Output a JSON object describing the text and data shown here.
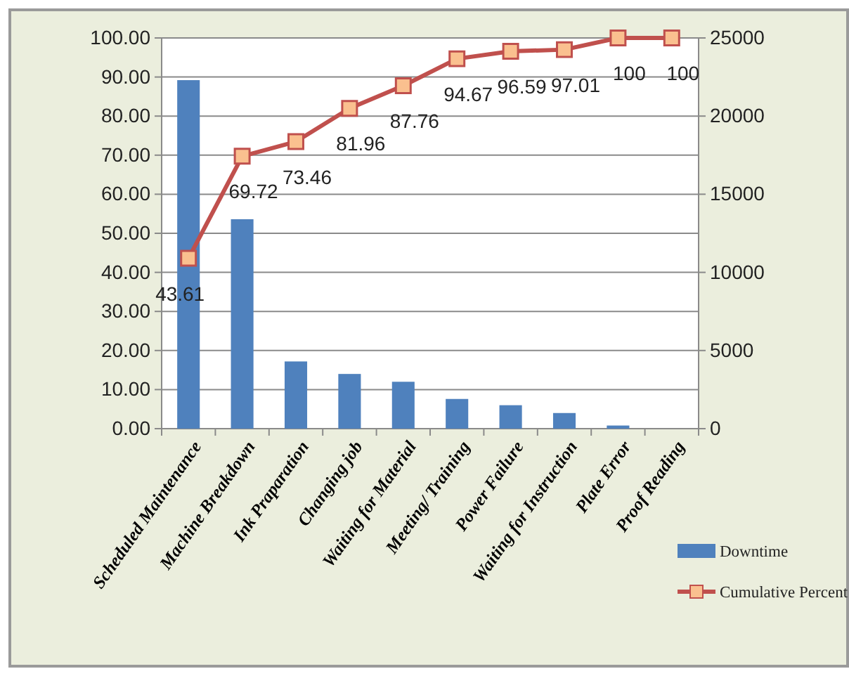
{
  "chart_data": {
    "type": "bar",
    "categories": [
      "Scheduled Maintenance",
      "Machine Breakdown",
      "Ink Praparation",
      "Changing job",
      "Waiting for Material",
      "Meeting/ Training",
      "Power Failure",
      "Waiting for Instruction",
      "Plate Error",
      "Proof Reading"
    ],
    "series": [
      {
        "name": "Downtime",
        "axis": "y2",
        "color": "#4f81bd",
        "values": [
          22300,
          13400,
          4300,
          3500,
          3000,
          1900,
          1500,
          1000,
          200,
          0
        ]
      },
      {
        "name": "Cumulative Percent",
        "type": "line",
        "axis": "y",
        "color": "#c0504d",
        "marker": "square",
        "values": [
          43.61,
          69.72,
          73.46,
          81.96,
          87.76,
          94.67,
          96.59,
          97.01,
          100,
          100
        ],
        "value_labels": [
          "43.61",
          "69.72",
          "73.46",
          "81.96",
          "87.76",
          "94.67",
          "96.59",
          "97.01",
          "100",
          "100"
        ]
      }
    ],
    "ylim": [
      0,
      100
    ],
    "yticks": [
      {
        "value": 0,
        "label": "0.00"
      },
      {
        "value": 10,
        "label": "10.00"
      },
      {
        "value": 20,
        "label": "20.00"
      },
      {
        "value": 30,
        "label": "30.00"
      },
      {
        "value": 40,
        "label": "40.00"
      },
      {
        "value": 50,
        "label": "50.00"
      },
      {
        "value": 60,
        "label": "60.00"
      },
      {
        "value": 70,
        "label": "70.00"
      },
      {
        "value": 80,
        "label": "80.00"
      },
      {
        "value": 90,
        "label": "90.00"
      },
      {
        "value": 100,
        "label": "100.00"
      }
    ],
    "y2lim": [
      0,
      25000
    ],
    "y2ticks": [
      0,
      5000,
      10000,
      15000,
      20000,
      25000
    ],
    "grid": "y",
    "legend": "right"
  }
}
